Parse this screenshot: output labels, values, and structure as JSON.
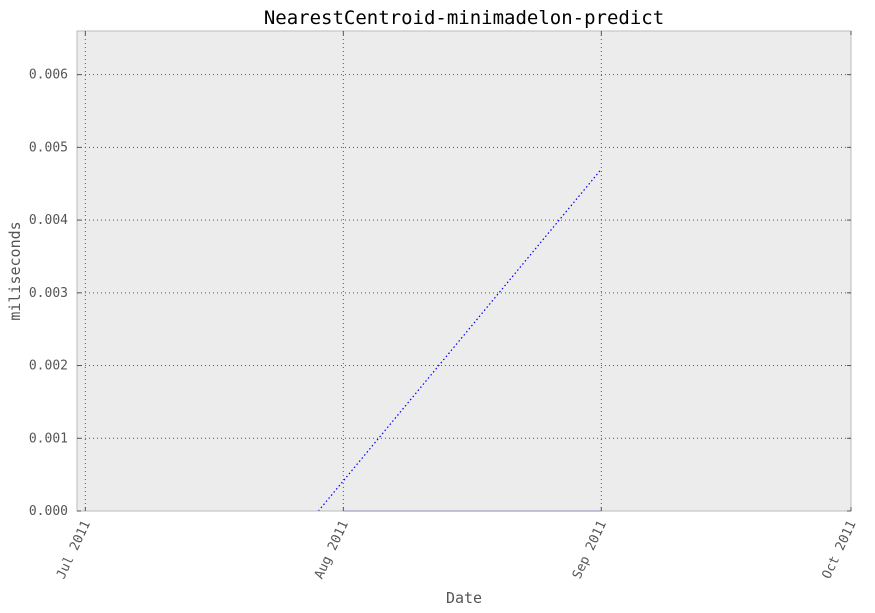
{
  "chart_data": {
    "type": "line",
    "title": "NearestCentroid-minimadelon-predict",
    "xlabel": "Date",
    "ylabel": "miliseconds",
    "x_ticks": [
      "2011-07-01",
      "2011-08-01",
      "2011-09-01",
      "2011-10-01"
    ],
    "x_tick_labels": [
      "Jul 2011",
      "Aug 2011",
      "Sep 2011",
      "Oct 2011"
    ],
    "xlim": [
      "2011-06-30",
      "2011-10-01"
    ],
    "y_ticks": [
      0.0,
      0.001,
      0.002,
      0.003,
      0.004,
      0.005,
      0.006
    ],
    "y_tick_labels": [
      "0.000",
      "0.001",
      "0.002",
      "0.003",
      "0.004",
      "0.005",
      "0.006"
    ],
    "ylim": [
      0.0,
      0.0066
    ],
    "grid": true,
    "series": [
      {
        "style": "dotted",
        "color": "#0000ff",
        "x": [
          "2011-07-29",
          "2011-09-01"
        ],
        "y": [
          0.0,
          0.0047
        ]
      },
      {
        "style": "solid",
        "color": "#9999ee",
        "x": [
          "2011-08-01",
          "2011-09-01"
        ],
        "y": [
          0.0,
          0.0
        ]
      }
    ],
    "colors": {
      "plot_background": "#ececec",
      "grid": "#555555",
      "frame": "#bbbbbb"
    }
  }
}
